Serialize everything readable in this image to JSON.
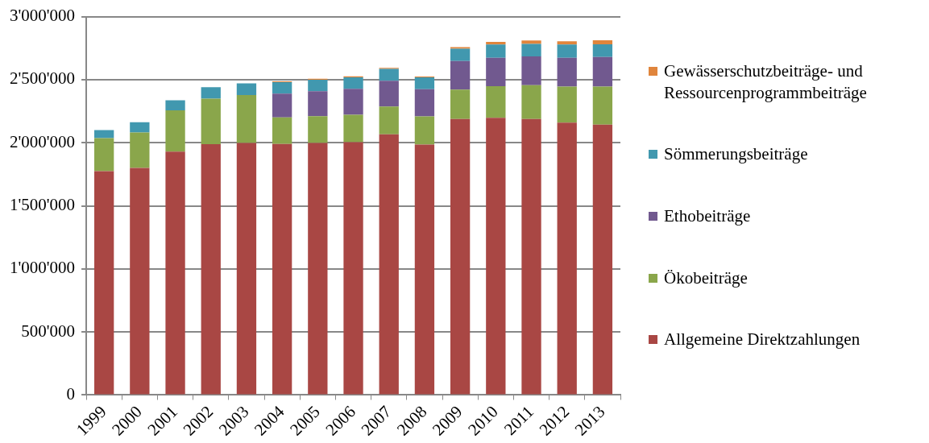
{
  "chart_data": {
    "type": "bar",
    "stacked": true,
    "legend": "right",
    "grid": "y",
    "categories": [
      "1999",
      "2000",
      "2001",
      "2002",
      "2003",
      "2004",
      "2005",
      "2006",
      "2007",
      "2008",
      "2009",
      "2010",
      "2011",
      "2012",
      "2013"
    ],
    "ylim": [
      0,
      3000000
    ],
    "yticks": [
      {
        "value": 0,
        "label": "0"
      },
      {
        "value": 500000,
        "label": "500'000"
      },
      {
        "value": 1000000,
        "label": "1'000'000"
      },
      {
        "value": 1500000,
        "label": "1'500'000"
      },
      {
        "value": 2000000,
        "label": "2'000'000"
      },
      {
        "value": 2500000,
        "label": "2'500'000"
      },
      {
        "value": 3000000,
        "label": "3'000'000"
      }
    ],
    "series": [
      {
        "name": "Allgemeine Direktzahlungen",
        "color": "#a94744",
        "values": [
          1775000,
          1801000,
          1929000,
          1989000,
          1998000,
          1991000,
          1998000,
          2004000,
          2067000,
          1985000,
          2188000,
          2198000,
          2188000,
          2159000,
          2143000
        ]
      },
      {
        "name": "Ökobeiträge",
        "color": "#8aa64b",
        "values": [
          261000,
          281000,
          328000,
          361000,
          380000,
          210000,
          213000,
          218000,
          220000,
          224000,
          233000,
          251000,
          268000,
          286000,
          302000
        ]
      },
      {
        "name": "Ethobeiträge",
        "color": "#71598f",
        "values": [
          null,
          null,
          null,
          null,
          null,
          188000,
          197000,
          206000,
          205000,
          216000,
          227000,
          225000,
          228000,
          229000,
          235000
        ]
      },
      {
        "name": "Sömmerungsbeiträge",
        "color": "#4198af",
        "values": [
          65000,
          80000,
          80000,
          91000,
          92000,
          92000,
          91000,
          90000,
          93000,
          93000,
          97000,
          104000,
          100000,
          104000,
          101000
        ]
      },
      {
        "name": "Gewässerschutzbeiträge- und Ressourcenprogrammbeiträge",
        "color": "#e0853c",
        "values": [
          null,
          null,
          null,
          null,
          null,
          6000,
          8000,
          9000,
          9000,
          7000,
          13000,
          21000,
          26000,
          26000,
          32000
        ]
      }
    ]
  }
}
